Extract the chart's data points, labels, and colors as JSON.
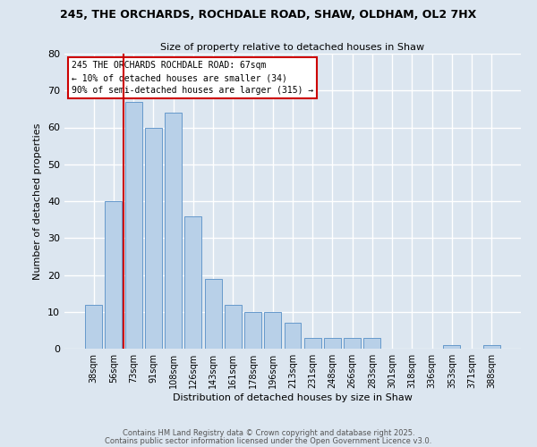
{
  "title1": "245, THE ORCHARDS, ROCHDALE ROAD, SHAW, OLDHAM, OL2 7HX",
  "title2": "Size of property relative to detached houses in Shaw",
  "xlabel": "Distribution of detached houses by size in Shaw",
  "ylabel": "Number of detached properties",
  "bar_labels": [
    "38sqm",
    "56sqm",
    "73sqm",
    "91sqm",
    "108sqm",
    "126sqm",
    "143sqm",
    "161sqm",
    "178sqm",
    "196sqm",
    "213sqm",
    "231sqm",
    "248sqm",
    "266sqm",
    "283sqm",
    "301sqm",
    "318sqm",
    "336sqm",
    "353sqm",
    "371sqm",
    "388sqm"
  ],
  "bar_values": [
    12,
    40,
    67,
    60,
    64,
    36,
    19,
    12,
    10,
    10,
    7,
    3,
    3,
    3,
    3,
    0,
    0,
    0,
    1,
    0,
    1
  ],
  "bar_color": "#b8d0e8",
  "bar_edge_color": "#6699cc",
  "bg_color": "#dce6f0",
  "grid_color": "#ffffff",
  "annotation_text": "245 THE ORCHARDS ROCHDALE ROAD: 67sqm\n← 10% of detached houses are smaller (34)\n90% of semi-detached houses are larger (315) →",
  "annotation_box_color": "#ffffff",
  "annotation_box_edge": "#cc0000",
  "ylim": [
    0,
    80
  ],
  "yticks": [
    0,
    10,
    20,
    30,
    40,
    50,
    60,
    70,
    80
  ],
  "footer1": "Contains HM Land Registry data © Crown copyright and database right 2025.",
  "footer2": "Contains public sector information licensed under the Open Government Licence v3.0."
}
